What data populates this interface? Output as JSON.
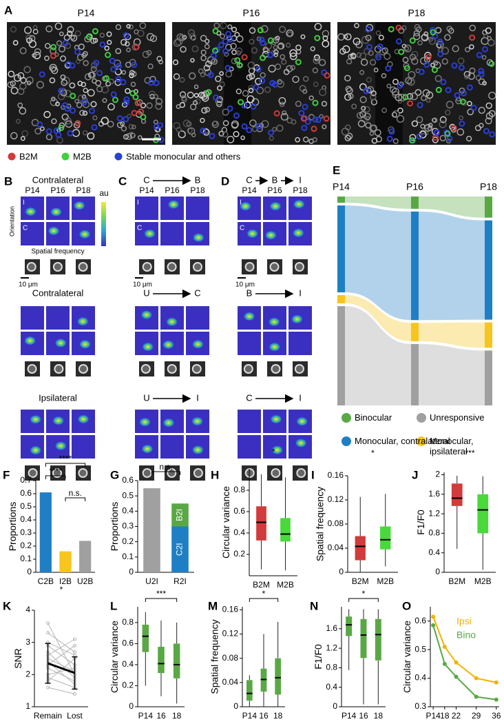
{
  "figure": {
    "panel_a": {
      "label": "A",
      "images": [
        {
          "title": "P14"
        },
        {
          "title": "P16"
        },
        {
          "title": "P18"
        }
      ],
      "legend": [
        {
          "name": "B2M",
          "color": "#d13b3b"
        },
        {
          "name": "M2B",
          "color": "#3fcf3f"
        },
        {
          "name": "Stable monocular and others",
          "color": "#2a3fd6"
        }
      ]
    },
    "panel_bcd": [
      {
        "label": "B",
        "sections": [
          {
            "header": [
              "Contralateral"
            ]
          },
          {
            "header": [
              "Contralateral"
            ]
          },
          {
            "header": [
              "Ipsilateral"
            ]
          }
        ]
      },
      {
        "label": "C",
        "sections": [
          {
            "header": [
              "C",
              "B"
            ]
          },
          {
            "header": [
              "U",
              "C"
            ]
          },
          {
            "header": [
              "U",
              "I"
            ]
          }
        ]
      },
      {
        "label": "D",
        "sections": [
          {
            "header": [
              "C",
              "B",
              "I"
            ]
          },
          {
            "header": [
              "B",
              "I"
            ]
          },
          {
            "header": [
              "C",
              "I"
            ]
          }
        ]
      }
    ],
    "ages": [
      "P14",
      "P16",
      "P18"
    ],
    "row_labels": [
      "I",
      "C"
    ],
    "orientation_label": "Orientation",
    "sf_label": "Spatial frequency",
    "colorbar_label": "au",
    "scale_bar": "10 μm"
  },
  "chart_data": [
    {
      "type": "sankey",
      "label": "E",
      "categories": [
        "P14",
        "P16",
        "P18"
      ],
      "series": [
        {
          "name": "Binocular",
          "color": "#5aa845",
          "values": [
            0.03,
            0.06,
            0.1
          ]
        },
        {
          "name": "Monocular, contralateral",
          "color": "#1f7fc4",
          "values": [
            0.42,
            0.53,
            0.47
          ]
        },
        {
          "name": "Monocular, ipsilateral",
          "color": "#f7c51e",
          "values": [
            0.04,
            0.09,
            0.12
          ]
        },
        {
          "name": "Unresponsive",
          "color": "#a0a0a0",
          "values": [
            0.48,
            0.3,
            0.26
          ]
        }
      ]
    },
    {
      "type": "bar",
      "label": "F",
      "ylabel": "Proportions",
      "categories": [
        "C2B",
        "I2B",
        "U2B"
      ],
      "values": [
        0.61,
        0.16,
        0.24
      ],
      "colors": [
        "#1f7fc4",
        "#f7c51e",
        "#a0a0a0"
      ],
      "ylim": [
        0,
        0.7
      ],
      "yticks": [
        0,
        0.1,
        0.2,
        0.3,
        0.4,
        0.5,
        0.6,
        0.7
      ],
      "annotations": [
        "****",
        "****",
        "n.s."
      ]
    },
    {
      "type": "stacked_bar",
      "label": "G",
      "ylabel": "Proportions",
      "categories": [
        "U2I",
        "R2I"
      ],
      "series": [
        {
          "color": "#a0a0a0",
          "values": [
            0.55,
            null
          ]
        },
        {
          "name": "C2I",
          "color": "#1f7fc4",
          "values": [
            null,
            0.3
          ]
        },
        {
          "name": "B2I",
          "color": "#5aa845",
          "values": [
            null,
            0.15
          ]
        }
      ],
      "ylim": [
        0,
        0.6
      ],
      "yticks": [
        0,
        0.1,
        0.2,
        0.3,
        0.4,
        0.5,
        0.6
      ],
      "annotations": [
        "n.s."
      ]
    },
    {
      "type": "box",
      "label": "H",
      "ylabel": "Circular variance",
      "categories": [
        "B2M",
        "M2B"
      ],
      "colors": [
        "#d13b3b",
        "#4ad93a"
      ],
      "boxes": [
        {
          "whislo": 0.06,
          "q1": 0.33,
          "med": 0.5,
          "q3": 0.65,
          "whishi": 0.95
        },
        {
          "whislo": 0.05,
          "q1": 0.32,
          "med": 0.39,
          "q3": 0.54,
          "whishi": 0.92
        }
      ],
      "ylim": [
        0,
        1
      ],
      "yticks": [
        0.2,
        0.4,
        0.6,
        0.8
      ],
      "annotations": [
        "*"
      ]
    },
    {
      "type": "box",
      "label": "I",
      "ylabel": "Spatial frequency",
      "categories": [
        "B2M",
        "M2B"
      ],
      "colors": [
        "#d13b3b",
        "#4ad93a"
      ],
      "boxes": [
        {
          "whislo": 0.0,
          "q1": 0.02,
          "med": 0.043,
          "q3": 0.06,
          "whishi": 0.125
        },
        {
          "whislo": 0.01,
          "q1": 0.038,
          "med": 0.054,
          "q3": 0.076,
          "whishi": 0.13
        }
      ],
      "ylim": [
        0,
        0.16
      ],
      "yticks": [
        0,
        0.04,
        0.08,
        0.12,
        0.16
      ],
      "annotations": [
        "*"
      ]
    },
    {
      "type": "box",
      "label": "J",
      "ylabel": "F1/F0",
      "categories": [
        "B2M",
        "M2B"
      ],
      "colors": [
        "#d13b3b",
        "#4ad93a"
      ],
      "boxes": [
        {
          "whislo": 0.48,
          "q1": 1.36,
          "med": 1.52,
          "q3": 1.82,
          "whishi": 1.98
        },
        {
          "whislo": 0.05,
          "q1": 0.8,
          "med": 1.28,
          "q3": 1.6,
          "whishi": 1.97
        }
      ],
      "ylim": [
        0,
        2.05
      ],
      "yticks": [
        0,
        0.4,
        0.8,
        1.2,
        1.6,
        2
      ],
      "annotations": [
        "***"
      ]
    },
    {
      "type": "paired",
      "label": "K",
      "ylabel": "SNR",
      "categories": [
        "Remain",
        "Lost"
      ],
      "series": [
        {
          "color": "#000000",
          "values": [
            2.35,
            2.05
          ],
          "errors": [
            0.62,
            0.5
          ]
        }
      ],
      "pairs": [
        [
          2.9,
          2.3
        ],
        [
          2.6,
          3.1
        ],
        [
          2.2,
          1.8
        ],
        [
          3.3,
          2.7
        ],
        [
          1.8,
          2.5
        ],
        [
          2.4,
          1.7
        ],
        [
          3.6,
          2.0
        ],
        [
          2.0,
          2.2
        ],
        [
          2.7,
          1.9
        ],
        [
          1.6,
          1.4
        ],
        [
          3.0,
          2.6
        ],
        [
          2.3,
          2.9
        ],
        [
          1.9,
          1.6
        ],
        [
          2.5,
          2.1
        ]
      ],
      "pair_color": "#b5b5b5",
      "ylim": [
        1,
        4
      ],
      "yticks": [
        1,
        2,
        3,
        4
      ],
      "annotations": [
        "*"
      ]
    },
    {
      "type": "box",
      "label": "L",
      "ylabel": "Circular variance",
      "categories": [
        "P14",
        "16",
        "18"
      ],
      "color": "#5aa845",
      "boxes": [
        {
          "whislo": 0.2,
          "q1": 0.52,
          "med": 0.67,
          "q3": 0.78,
          "whishi": 0.9
        },
        {
          "whislo": 0.1,
          "q1": 0.32,
          "med": 0.41,
          "q3": 0.57,
          "whishi": 0.82
        },
        {
          "whislo": 0.03,
          "q1": 0.27,
          "med": 0.4,
          "q3": 0.6,
          "whishi": 0.8
        }
      ],
      "ylim": [
        0,
        0.95
      ],
      "yticks": [
        0,
        0.2,
        0.4,
        0.6,
        0.8
      ],
      "annotations": [
        "***"
      ]
    },
    {
      "type": "box",
      "label": "M",
      "ylabel": "Spatial frequency",
      "categories": [
        "P14",
        "16",
        "18"
      ],
      "color": "#5aa845",
      "boxes": [
        {
          "whislo": 0.0,
          "q1": 0.01,
          "med": 0.022,
          "q3": 0.044,
          "whishi": 0.052
        },
        {
          "whislo": 0.0,
          "q1": 0.025,
          "med": 0.045,
          "q3": 0.063,
          "whishi": 0.12
        },
        {
          "whislo": 0.0,
          "q1": 0.02,
          "med": 0.048,
          "q3": 0.08,
          "whishi": 0.14
        }
      ],
      "ylim": [
        0,
        0.165
      ],
      "yticks": [
        0,
        0.04,
        0.08,
        0.12,
        0.16
      ],
      "annotations": [
        "*"
      ]
    },
    {
      "type": "box",
      "label": "N",
      "ylabel": "F1/F0",
      "categories": [
        "P14",
        "16",
        "18"
      ],
      "color": "#5aa845",
      "boxes": [
        {
          "whislo": 0.75,
          "q1": 1.45,
          "med": 1.68,
          "q3": 1.85,
          "whishi": 2.0
        },
        {
          "whislo": 0.05,
          "q1": 1.0,
          "med": 1.47,
          "q3": 1.8,
          "whishi": 2.0
        },
        {
          "whislo": 0.05,
          "q1": 0.95,
          "med": 1.48,
          "q3": 1.8,
          "whishi": 2.0
        }
      ],
      "ylim": [
        0,
        2.05
      ],
      "yticks": [
        0,
        0.4,
        0.8,
        1.2,
        1.6
      ],
      "annotations": [
        "*"
      ]
    },
    {
      "type": "line",
      "label": "O",
      "ylabel": "Circular variance",
      "x": [
        14,
        18,
        22,
        29,
        36
      ],
      "series": [
        {
          "name": "Ipsi",
          "color": "#f0b400",
          "values": [
            0.615,
            0.51,
            0.455,
            0.4,
            0.385
          ]
        },
        {
          "name": "Bino",
          "color": "#5aa845",
          "values": [
            0.585,
            0.45,
            0.405,
            0.335,
            0.325
          ]
        }
      ],
      "xlim": [
        13,
        37
      ],
      "xticks": [
        {
          "value": 14,
          "label": "P14"
        },
        18,
        22,
        29,
        36
      ],
      "ylim": [
        0.3,
        0.65
      ],
      "yticks": [
        0.3,
        0.4,
        0.5,
        0.6
      ]
    }
  ]
}
